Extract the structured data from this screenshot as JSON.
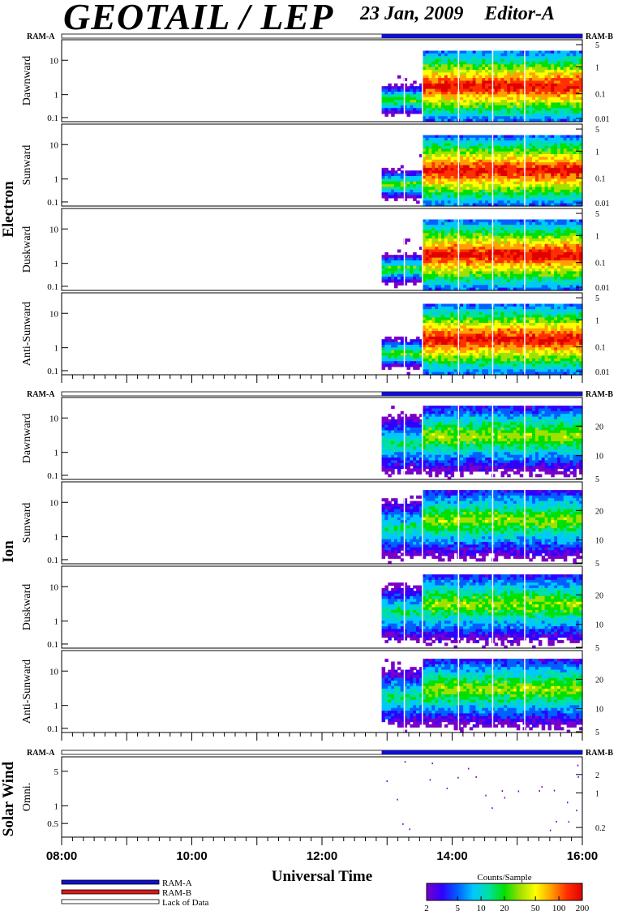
{
  "header": {
    "title": "GEOTAIL / LEP",
    "date": "23 Jan, 2009",
    "editor": "Editor-A"
  },
  "colors": {
    "ram_a": "#1010c8",
    "ram_b": "#d81818",
    "lack": "#ffffff",
    "colorbar": [
      "#7a00c8",
      "#3000ff",
      "#0060ff",
      "#00c8ff",
      "#00e0a0",
      "#00e000",
      "#a0e000",
      "#ffff00",
      "#ffa000",
      "#ff3000",
      "#e00000"
    ]
  },
  "chart_data": {
    "type": "heatmap",
    "xlabel": "Universal Time",
    "x_range": [
      "08:00",
      "16:00"
    ],
    "x_ticks": [
      "08:00",
      "10:00",
      "12:00",
      "14:00",
      "16:00"
    ],
    "data_start": "12:55",
    "groups": [
      {
        "name": "Electron",
        "panels": [
          {
            "name": "Dawnward",
            "left_ticks": [
              "10",
              "1",
              "0.1"
            ],
            "right_ticks": [
              "5",
              "1",
              "0.1",
              "0.01"
            ]
          },
          {
            "name": "Sunward",
            "left_ticks": [
              "10",
              "1",
              "0.1"
            ],
            "right_ticks": [
              "5",
              "1",
              "0.1",
              "0.01"
            ]
          },
          {
            "name": "Duskward",
            "left_ticks": [
              "10",
              "1",
              "0.1"
            ],
            "right_ticks": [
              "5",
              "1",
              "0.1",
              "0.01"
            ]
          },
          {
            "name": "Anti-Sunward",
            "left_ticks": [
              "10",
              "1",
              "0.1"
            ],
            "right_ticks": [
              "5",
              "1",
              "0.1",
              "0.01"
            ]
          }
        ]
      },
      {
        "name": "Ion",
        "panels": [
          {
            "name": "Dawnward",
            "left_ticks": [
              "10",
              "1",
              "0.1"
            ],
            "right_ticks": [
              "20",
              "10",
              "5"
            ]
          },
          {
            "name": "Sunward",
            "left_ticks": [
              "10",
              "1",
              "0.1"
            ],
            "right_ticks": [
              "20",
              "10",
              "5"
            ]
          },
          {
            "name": "Duskward",
            "left_ticks": [
              "10",
              "1",
              "0.1"
            ],
            "right_ticks": [
              "20",
              "10",
              "5"
            ]
          },
          {
            "name": "Anti-Sunward",
            "left_ticks": [
              "10",
              "1",
              "0.1"
            ],
            "right_ticks": [
              "20",
              "10",
              "5"
            ]
          }
        ]
      },
      {
        "name": "Solar Wind",
        "panels": [
          {
            "name": "Omni.",
            "left_ticks": [
              "5",
              "1",
              "0.5"
            ],
            "right_ticks": [
              "2",
              "1",
              "0.2"
            ]
          }
        ]
      }
    ],
    "ram_label_left": "RAM-A",
    "ram_label_right": "RAM-B",
    "legend": [
      "RAM-A",
      "RAM-B",
      "Lack of Data"
    ],
    "colorbar": {
      "title": "Counts/Sample",
      "ticks": [
        "2",
        "5",
        "10",
        "20",
        "50",
        "100",
        "200"
      ]
    }
  }
}
